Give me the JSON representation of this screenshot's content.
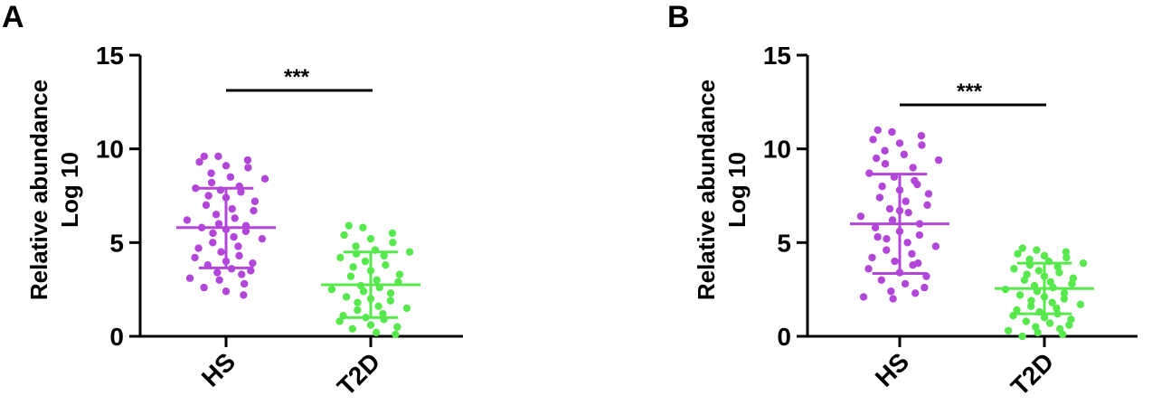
{
  "chart_data": [
    {
      "type": "scatter",
      "panel_label": "A",
      "ylabel_lines": [
        "Relative abundance",
        "Log 10"
      ],
      "ylim": [
        0,
        15
      ],
      "yticks": [
        "0",
        "5",
        "10",
        "15"
      ],
      "categories": [
        "HS",
        "T2D"
      ],
      "significance": "***",
      "series": [
        {
          "color": "#b146d9",
          "mean": 5.8,
          "sd_low": 3.65,
          "sd_high": 7.9,
          "values": [
            9.6,
            9.6,
            9.4,
            9.3,
            9.1,
            9.0,
            8.7,
            8.5,
            8.4,
            8.2,
            8.0,
            7.9,
            7.8,
            7.7,
            7.5,
            7.4,
            7.2,
            7.0,
            6.8,
            6.7,
            6.5,
            6.3,
            6.2,
            6.0,
            5.9,
            5.8,
            5.7,
            5.6,
            5.5,
            5.3,
            5.2,
            5.0,
            4.8,
            4.7,
            4.5,
            4.3,
            4.2,
            4.0,
            3.9,
            3.8,
            3.6,
            3.5,
            3.4,
            3.3,
            3.1,
            3.0,
            2.8,
            2.6,
            2.4,
            2.2
          ]
        },
        {
          "color": "#57e84e",
          "mean": 2.75,
          "sd_low": 1.0,
          "sd_high": 4.5,
          "values": [
            5.9,
            5.8,
            5.5,
            5.4,
            5.2,
            5.0,
            4.8,
            4.6,
            4.5,
            4.4,
            4.3,
            4.2,
            4.0,
            3.8,
            3.7,
            3.5,
            3.3,
            3.2,
            3.0,
            2.9,
            2.7,
            2.6,
            2.5,
            2.4,
            2.3,
            2.1,
            2.0,
            1.9,
            1.8,
            1.6,
            1.5,
            1.4,
            1.2,
            1.1,
            1.0,
            0.9,
            0.8,
            0.6,
            0.5,
            0.4,
            0.2,
            0.1
          ]
        }
      ]
    },
    {
      "type": "scatter",
      "panel_label": "B",
      "ylabel_lines": [
        "Relative abundance",
        "Log 10"
      ],
      "ylim": [
        0,
        15
      ],
      "yticks": [
        "0",
        "5",
        "10",
        "15"
      ],
      "categories": [
        "HS",
        "T2D"
      ],
      "significance": "***",
      "series": [
        {
          "color": "#b146d9",
          "mean": 6.0,
          "sd_low": 3.35,
          "sd_high": 8.65,
          "values": [
            11.0,
            10.9,
            10.7,
            10.5,
            10.3,
            10.2,
            9.9,
            9.7,
            9.4,
            9.2,
            9.0,
            8.7,
            8.5,
            8.3,
            8.0,
            7.8,
            7.6,
            7.4,
            7.2,
            7.0,
            6.8,
            6.6,
            6.4,
            6.2,
            6.0,
            5.8,
            5.6,
            5.4,
            5.2,
            5.0,
            4.8,
            4.6,
            4.4,
            4.2,
            4.0,
            3.8,
            3.6,
            3.4,
            3.2,
            3.0,
            2.8,
            2.6,
            2.4,
            2.3,
            2.1,
            2.0,
            3.9,
            5.3,
            6.7,
            8.1,
            9.5
          ]
        },
        {
          "color": "#57e84e",
          "mean": 2.55,
          "sd_low": 1.2,
          "sd_high": 3.9,
          "values": [
            4.7,
            4.6,
            4.5,
            4.4,
            4.3,
            4.2,
            4.1,
            4.0,
            3.9,
            3.8,
            3.7,
            3.6,
            3.5,
            3.4,
            3.3,
            3.2,
            3.1,
            3.0,
            2.9,
            2.8,
            2.7,
            2.6,
            2.5,
            2.4,
            2.3,
            2.2,
            2.1,
            2.0,
            1.9,
            1.8,
            1.7,
            1.6,
            1.5,
            1.4,
            1.3,
            1.2,
            1.1,
            1.0,
            0.9,
            0.8,
            0.7,
            0.6,
            0.5,
            0.4,
            0.3,
            0.2,
            0.1,
            0.0
          ]
        }
      ]
    }
  ]
}
